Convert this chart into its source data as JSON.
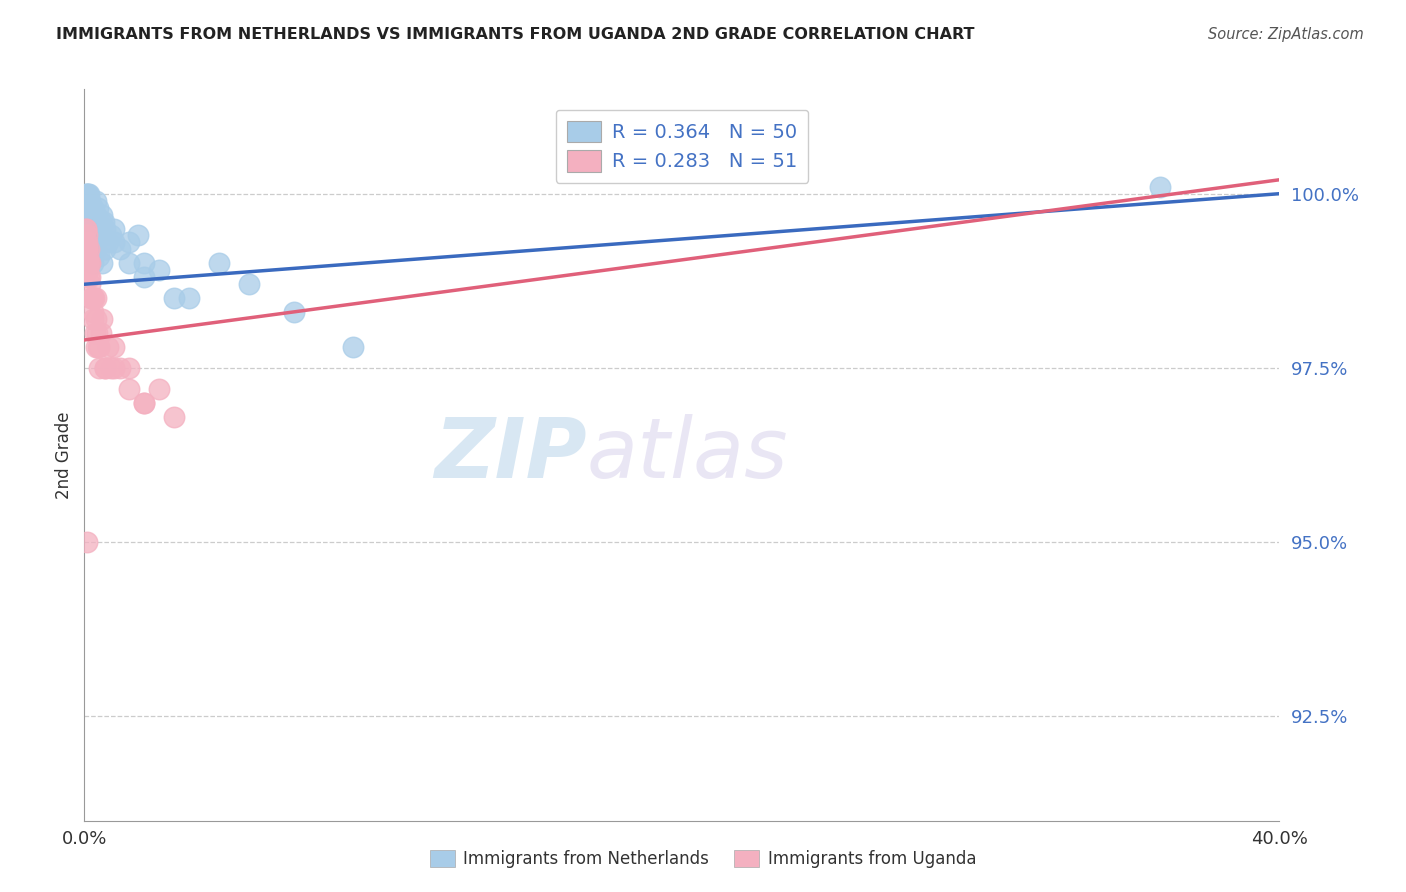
{
  "title": "IMMIGRANTS FROM NETHERLANDS VS IMMIGRANTS FROM UGANDA 2ND GRADE CORRELATION CHART",
  "source": "Source: ZipAtlas.com",
  "ylabel": "2nd Grade",
  "R_netherlands": 0.364,
  "N_netherlands": 50,
  "R_uganda": 0.283,
  "N_uganda": 51,
  "color_netherlands": "#a8cce8",
  "color_uganda": "#f4b0c0",
  "trendline_netherlands": "#3a6abf",
  "trendline_uganda": "#e0607a",
  "watermark_zip": "ZIP",
  "watermark_atlas": "atlas",
  "xlim": [
    0.0,
    40.0
  ],
  "ylim": [
    91.0,
    101.5
  ],
  "yticks": [
    92.5,
    95.0,
    97.5,
    100.0
  ],
  "ytick_labels": [
    "92.5%",
    "95.0%",
    "97.5%",
    "100.0%"
  ],
  "nl_x": [
    0.05,
    0.08,
    0.1,
    0.12,
    0.15,
    0.18,
    0.2,
    0.22,
    0.25,
    0.28,
    0.3,
    0.32,
    0.35,
    0.38,
    0.4,
    0.45,
    0.5,
    0.55,
    0.6,
    0.65,
    0.7,
    0.8,
    0.9,
    1.0,
    1.2,
    1.5,
    1.8,
    2.0,
    2.5,
    3.0,
    0.1,
    0.15,
    0.2,
    0.25,
    0.3,
    0.35,
    0.4,
    0.5,
    0.6,
    0.7,
    1.0,
    1.5,
    2.0,
    3.5,
    4.5,
    5.5,
    7.0,
    9.0,
    36.0,
    0.08
  ],
  "nl_y": [
    100.0,
    100.0,
    99.9,
    100.0,
    100.0,
    99.8,
    99.9,
    99.7,
    99.8,
    99.6,
    99.8,
    99.5,
    99.6,
    99.7,
    99.9,
    99.8,
    99.5,
    99.6,
    99.7,
    99.6,
    99.5,
    99.3,
    99.4,
    99.5,
    99.2,
    99.3,
    99.4,
    99.0,
    98.9,
    98.5,
    99.4,
    99.3,
    99.2,
    99.1,
    99.0,
    99.3,
    99.2,
    99.1,
    99.0,
    99.2,
    99.3,
    99.0,
    98.8,
    98.5,
    99.0,
    98.7,
    98.3,
    97.8,
    100.1,
    99.7
  ],
  "ug_x": [
    0.02,
    0.04,
    0.05,
    0.06,
    0.07,
    0.08,
    0.09,
    0.1,
    0.11,
    0.12,
    0.13,
    0.15,
    0.16,
    0.18,
    0.2,
    0.22,
    0.25,
    0.28,
    0.3,
    0.33,
    0.35,
    0.38,
    0.4,
    0.42,
    0.45,
    0.5,
    0.55,
    0.6,
    0.7,
    0.8,
    0.9,
    1.0,
    1.2,
    1.5,
    2.0,
    2.5,
    3.0,
    0.05,
    0.08,
    0.1,
    0.15,
    0.2,
    0.25,
    0.3,
    0.4,
    0.5,
    0.7,
    1.0,
    1.5,
    2.0,
    0.1
  ],
  "ug_y": [
    99.0,
    99.2,
    99.3,
    99.5,
    99.0,
    99.4,
    99.2,
    99.0,
    99.1,
    98.9,
    99.0,
    98.8,
    99.2,
    99.0,
    98.7,
    98.5,
    98.5,
    98.3,
    98.2,
    98.5,
    98.0,
    97.8,
    98.5,
    98.0,
    97.8,
    97.5,
    98.0,
    98.2,
    97.5,
    97.8,
    97.5,
    97.8,
    97.5,
    97.5,
    97.0,
    97.2,
    96.8,
    99.5,
    99.3,
    99.2,
    99.0,
    98.8,
    98.5,
    98.5,
    98.2,
    97.8,
    97.5,
    97.5,
    97.2,
    97.0,
    95.0
  ],
  "tl_nl_x0": 0.0,
  "tl_nl_y0": 98.7,
  "tl_nl_x1": 40.0,
  "tl_nl_y1": 100.0,
  "tl_ug_x0": 0.0,
  "tl_ug_y0": 97.9,
  "tl_ug_x1": 40.0,
  "tl_ug_y1": 100.2,
  "legend_nl": "R = 0.364   N = 50",
  "legend_ug": "R = 0.283   N = 51",
  "bottom_legend_nl": "Immigrants from Netherlands",
  "bottom_legend_ug": "Immigrants from Uganda"
}
